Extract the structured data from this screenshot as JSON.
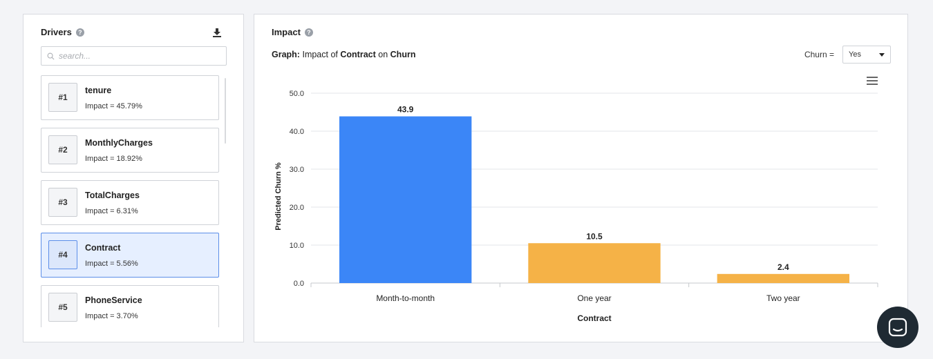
{
  "drivers_panel": {
    "title": "Drivers",
    "search_placeholder": "search...",
    "items": [
      {
        "rank": "#1",
        "name": "tenure",
        "impact": "Impact = 45.79%",
        "selected": false
      },
      {
        "rank": "#2",
        "name": "MonthlyCharges",
        "impact": "Impact = 18.92%",
        "selected": false
      },
      {
        "rank": "#3",
        "name": "TotalCharges",
        "impact": "Impact = 6.31%",
        "selected": false
      },
      {
        "rank": "#4",
        "name": "Contract",
        "impact": "Impact = 5.56%",
        "selected": true
      },
      {
        "rank": "#5",
        "name": "PhoneService",
        "impact": "Impact = 3.70%",
        "selected": false
      }
    ]
  },
  "impact_panel": {
    "title": "Impact",
    "subtitle_label": "Graph:",
    "subtitle_pre": "Impact of",
    "subtitle_feature": "Contract",
    "subtitle_mid": "on",
    "subtitle_target": "Churn",
    "filter_label": "Churn =",
    "filter_value": "Yes"
  },
  "colors": {
    "accent_bar": "#3b86f7",
    "other_bar": "#f5b247",
    "selected_bg": "#e6efff"
  },
  "chart_data": {
    "type": "bar",
    "categories": [
      "Month-to-month",
      "One year",
      "Two year"
    ],
    "values": [
      43.9,
      10.5,
      2.4
    ],
    "value_labels": [
      "43.9",
      "10.5",
      "2.4"
    ],
    "highlight_index": 0,
    "title": "",
    "xlabel": "Contract",
    "ylabel": "Predicted Churn %",
    "ylim": [
      0,
      50
    ],
    "yticks": [
      0,
      10,
      20,
      30,
      40,
      50
    ],
    "ytick_labels": [
      "0.0",
      "10.0",
      "20.0",
      "30.0",
      "40.0",
      "50.0"
    ],
    "grid": true
  }
}
